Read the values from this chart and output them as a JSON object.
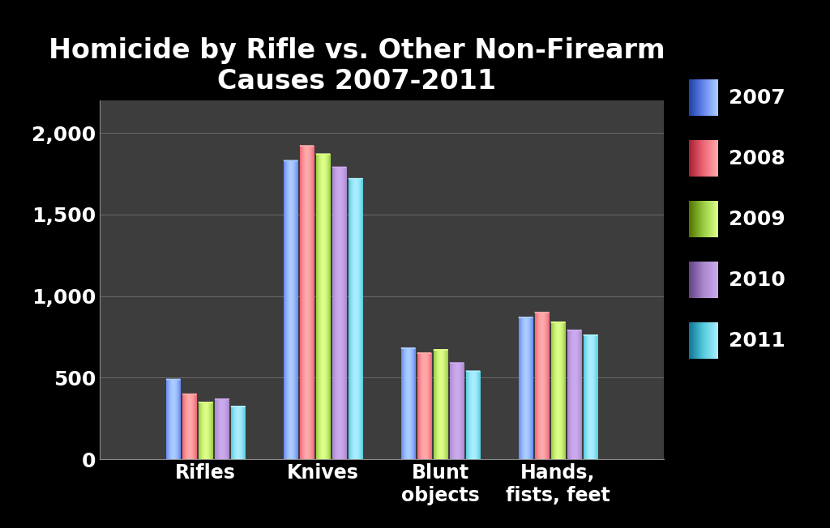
{
  "title": "Homicide by Rifle vs. Other Non-Firearm\nCauses 2007-2011",
  "categories": [
    "Rifles",
    "Knives",
    "Blunt\nobjects",
    "Hands,\nfists, feet"
  ],
  "years": [
    "2007",
    "2008",
    "2009",
    "2010",
    "2011"
  ],
  "values": [
    [
      490,
      400,
      350,
      370,
      323
    ],
    [
      1830,
      1920,
      1870,
      1790,
      1720
    ],
    [
      680,
      650,
      670,
      590,
      540
    ],
    [
      869,
      901,
      840,
      790,
      760
    ]
  ],
  "bar_colors_main": [
    "#6688EE",
    "#EE6677",
    "#99CC44",
    "#AA88CC",
    "#55CCDD"
  ],
  "bar_colors_light": [
    "#AACCFF",
    "#FFAAAA",
    "#DDFF88",
    "#CCAAEE",
    "#AAEEFF"
  ],
  "bar_colors_dark": [
    "#2244AA",
    "#AA2233",
    "#557700",
    "#664488",
    "#117799"
  ],
  "background_color": "#000000",
  "plot_bg_color": "#3d3d3d",
  "grid_color": "#888888",
  "text_color": "#ffffff",
  "ylim": [
    0,
    2200
  ],
  "yticks": [
    0,
    500,
    1000,
    1500,
    2000
  ],
  "ytick_labels": [
    "0",
    "500",
    "1,000",
    "1,500",
    "2,000"
  ],
  "legend_labels": [
    "2007",
    "2008",
    "2009",
    "2010",
    "2011"
  ],
  "title_fontsize": 24,
  "tick_fontsize": 18,
  "legend_fontsize": 18,
  "xtick_fontsize": 17
}
